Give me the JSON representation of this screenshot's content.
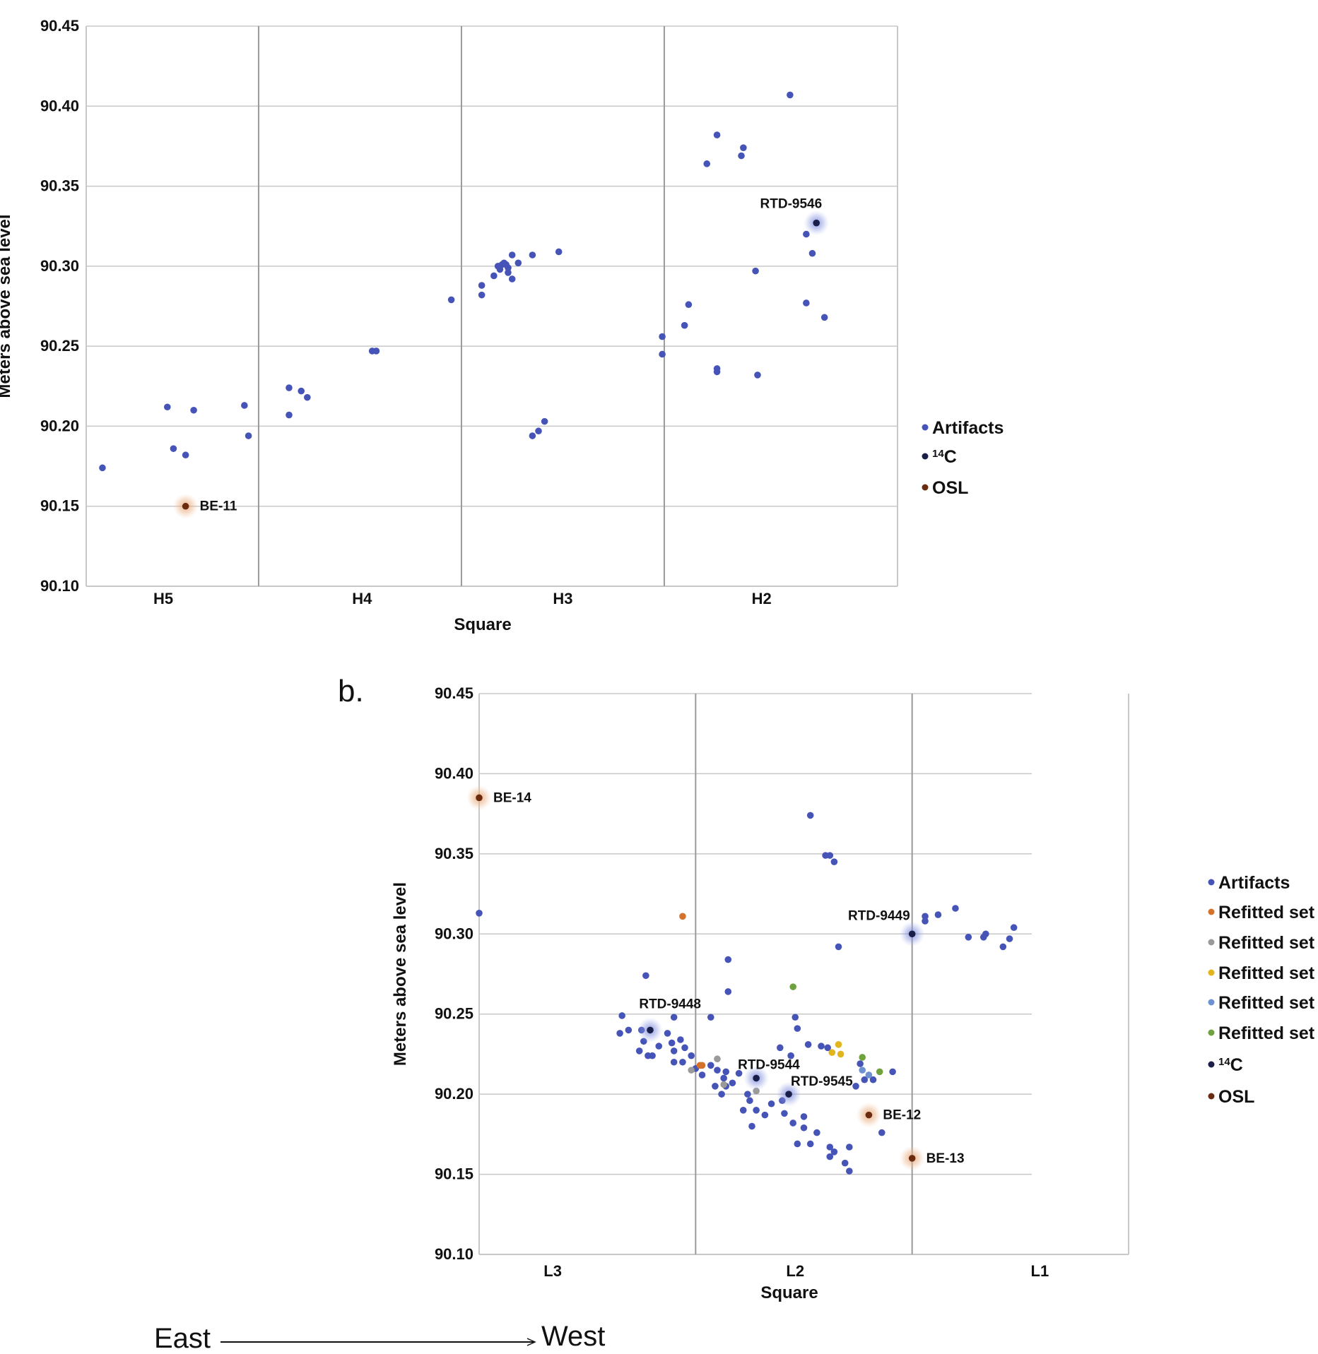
{
  "colors": {
    "artifacts": "#4654b8",
    "c14": "#1a1f4a",
    "osl": "#6b2b0f",
    "refit_orange": "#d4722c",
    "refit_gray": "#9a9a9a",
    "refit_yellow": "#e2b51c",
    "refit_lightblue": "#6e91d2",
    "refit_green": "#6fa23e",
    "grid": "#c8c8c8",
    "divider": "#9a9a9a"
  },
  "panel_b_label": "b.",
  "direction": {
    "east": "East",
    "west": "West"
  },
  "chart_data": [
    {
      "type": "scatter",
      "xlabel": "Square",
      "ylabel": "Meters above sea level",
      "xlim": [
        0,
        4
      ],
      "ylim": [
        90.1,
        90.45
      ],
      "yticks": [
        "90.45",
        "90.40",
        "90.35",
        "90.30",
        "90.25",
        "90.20",
        "90.15",
        "90.10"
      ],
      "categories": [
        {
          "label": "H5",
          "x": 0.38
        },
        {
          "label": "H4",
          "x": 1.36
        },
        {
          "label": "H3",
          "x": 2.35
        },
        {
          "label": "H2",
          "x": 3.33
        }
      ],
      "dividers": [
        0.85,
        1.85,
        2.85
      ],
      "grid": true,
      "legend_position": "right",
      "legend": [
        {
          "label": "Artifacts",
          "marker": "artifacts"
        },
        {
          "label": "14C",
          "marker": "c14"
        },
        {
          "label": "OSL",
          "marker": "osl"
        }
      ],
      "series": [
        {
          "name": "Artifacts",
          "color": "artifacts",
          "points": [
            [
              0.08,
              90.174
            ],
            [
              0.4,
              90.212
            ],
            [
              0.53,
              90.21
            ],
            [
              0.43,
              90.186
            ],
            [
              0.49,
              90.182
            ],
            [
              0.78,
              90.213
            ],
            [
              0.8,
              90.194
            ],
            [
              1.0,
              90.224
            ],
            [
              1.06,
              90.222
            ],
            [
              1.09,
              90.218
            ],
            [
              1.0,
              90.207
            ],
            [
              1.41,
              90.247
            ],
            [
              1.43,
              90.247
            ],
            [
              1.8,
              90.279
            ],
            [
              1.95,
              90.288
            ],
            [
              1.95,
              90.282
            ],
            [
              2.01,
              90.294
            ],
            [
              2.03,
              90.3
            ],
            [
              2.05,
              90.301
            ],
            [
              2.07,
              90.301
            ],
            [
              2.08,
              90.299
            ],
            [
              2.04,
              90.298
            ],
            [
              2.06,
              90.302
            ],
            [
              2.08,
              90.296
            ],
            [
              2.1,
              90.292
            ],
            [
              2.1,
              90.307
            ],
            [
              2.13,
              90.302
            ],
            [
              2.2,
              90.307
            ],
            [
              2.33,
              90.309
            ],
            [
              2.2,
              90.194
            ],
            [
              2.23,
              90.197
            ],
            [
              2.26,
              90.203
            ],
            [
              2.84,
              90.256
            ],
            [
              2.84,
              90.245
            ],
            [
              2.95,
              90.263
            ],
            [
              2.97,
              90.276
            ],
            [
              3.06,
              90.364
            ],
            [
              3.11,
              90.382
            ],
            [
              3.24,
              90.374
            ],
            [
              3.23,
              90.369
            ],
            [
              3.11,
              90.236
            ],
            [
              3.11,
              90.234
            ],
            [
              3.3,
              90.297
            ],
            [
              3.31,
              90.232
            ],
            [
              3.47,
              90.407
            ],
            [
              3.55,
              90.32
            ],
            [
              3.58,
              90.308
            ],
            [
              3.55,
              90.277
            ],
            [
              3.64,
              90.268
            ]
          ]
        },
        {
          "name": "14C",
          "color": "c14",
          "points": [
            [
              3.6,
              90.327,
              "RTD-9546"
            ]
          ]
        },
        {
          "name": "OSL",
          "color": "osl",
          "points": [
            [
              0.49,
              90.15,
              "BE-11"
            ]
          ]
        }
      ]
    },
    {
      "type": "scatter",
      "xlabel": "Square",
      "ylabel": "Meters above sea level",
      "xlim": [
        0,
        3
      ],
      "ylim": [
        90.1,
        90.45
      ],
      "yticks": [
        "90.45",
        "90.40",
        "90.35",
        "90.30",
        "90.25",
        "90.20",
        "90.15",
        "90.10"
      ],
      "categories": [
        {
          "label": "L3",
          "x": 0.34
        },
        {
          "label": "L2",
          "x": 1.46
        },
        {
          "label": "L1",
          "x": 2.59
        }
      ],
      "dividers": [
        1.0,
        2.0
      ],
      "grid": true,
      "legend_position": "right",
      "legend": [
        {
          "label": "Artifacts",
          "marker": "artifacts"
        },
        {
          "label": "Refitted set",
          "marker": "refit_orange"
        },
        {
          "label": "Refitted set",
          "marker": "refit_gray"
        },
        {
          "label": "Refitted set",
          "marker": "refit_yellow"
        },
        {
          "label": "Refitted set",
          "marker": "refit_lightblue"
        },
        {
          "label": "Refitted set",
          "marker": "refit_green"
        },
        {
          "label": "14C",
          "marker": "c14"
        },
        {
          "label": "OSL",
          "marker": "osl"
        }
      ],
      "series": [
        {
          "name": "Artifacts",
          "color": "artifacts",
          "points": [
            [
              0.0,
              90.313
            ],
            [
              0.66,
              90.249
            ],
            [
              0.65,
              90.238
            ],
            [
              0.69,
              90.24
            ],
            [
              0.75,
              90.24
            ],
            [
              0.76,
              90.233
            ],
            [
              0.74,
              90.227
            ],
            [
              0.78,
              90.224
            ],
            [
              0.8,
              90.224
            ],
            [
              0.83,
              90.23
            ],
            [
              0.87,
              90.238
            ],
            [
              0.9,
              90.248
            ],
            [
              0.89,
              90.232
            ],
            [
              0.9,
              90.227
            ],
            [
              0.93,
              90.234
            ],
            [
              0.95,
              90.229
            ],
            [
              0.98,
              90.224
            ],
            [
              0.9,
              90.22
            ],
            [
              0.94,
              90.22
            ],
            [
              1.0,
              90.216
            ],
            [
              1.03,
              90.212
            ],
            [
              1.07,
              90.218
            ],
            [
              1.1,
              90.215
            ],
            [
              1.14,
              90.214
            ],
            [
              1.13,
              90.21
            ],
            [
              1.09,
              90.205
            ],
            [
              1.14,
              90.205
            ],
            [
              1.17,
              90.207
            ],
            [
              1.2,
              90.213
            ],
            [
              1.24,
              90.2
            ],
            [
              1.25,
              90.196
            ],
            [
              1.22,
              90.19
            ],
            [
              1.28,
              90.19
            ],
            [
              1.32,
              90.187
            ],
            [
              1.35,
              90.194
            ],
            [
              1.4,
              90.196
            ],
            [
              1.41,
              90.188
            ],
            [
              1.45,
              90.182
            ],
            [
              1.5,
              90.186
            ],
            [
              1.5,
              90.179
            ],
            [
              1.56,
              90.176
            ],
            [
              1.47,
              90.169
            ],
            [
              1.53,
              90.169
            ],
            [
              1.62,
              90.167
            ],
            [
              1.62,
              90.161
            ],
            [
              1.64,
              90.164
            ],
            [
              1.69,
              90.157
            ],
            [
              1.71,
              90.152
            ],
            [
              1.71,
              90.167
            ],
            [
              1.86,
              90.176
            ],
            [
              1.12,
              90.2
            ],
            [
              1.26,
              90.18
            ],
            [
              1.39,
              90.229
            ],
            [
              1.44,
              90.224
            ],
            [
              1.47,
              90.241
            ],
            [
              1.46,
              90.248
            ],
            [
              1.52,
              90.231
            ],
            [
              1.58,
              90.23
            ],
            [
              1.61,
              90.229
            ],
            [
              0.77,
              90.274
            ],
            [
              1.15,
              90.284
            ],
            [
              1.15,
              90.264
            ],
            [
              1.07,
              90.248
            ],
            [
              1.53,
              90.374
            ],
            [
              1.6,
              90.349
            ],
            [
              1.62,
              90.349
            ],
            [
              1.64,
              90.345
            ],
            [
              1.66,
              90.292
            ],
            [
              1.76,
              90.219
            ],
            [
              1.78,
              90.209
            ],
            [
              1.82,
              90.209
            ],
            [
              1.91,
              90.214
            ],
            [
              1.74,
              90.205
            ],
            [
              2.06,
              90.311
            ],
            [
              2.06,
              90.308
            ],
            [
              2.12,
              90.312
            ],
            [
              2.2,
              90.316
            ],
            [
              2.26,
              90.298
            ],
            [
              2.33,
              90.298
            ],
            [
              2.34,
              90.3
            ],
            [
              2.42,
              90.292
            ],
            [
              2.45,
              90.297
            ],
            [
              2.47,
              90.304
            ]
          ]
        },
        {
          "name": "Refitted set",
          "color": "refit_orange",
          "points": [
            [
              0.94,
              90.311
            ],
            [
              1.02,
              90.218
            ],
            [
              1.03,
              90.218
            ]
          ]
        },
        {
          "name": "Refitted set",
          "color": "refit_gray",
          "points": [
            [
              0.98,
              90.215
            ],
            [
              1.1,
              90.222
            ],
            [
              1.13,
              90.206
            ],
            [
              1.28,
              90.202
            ]
          ]
        },
        {
          "name": "Refitted set",
          "color": "refit_yellow",
          "points": [
            [
              1.63,
              90.226
            ],
            [
              1.67,
              90.225
            ],
            [
              1.66,
              90.231
            ]
          ]
        },
        {
          "name": "Refitted set",
          "color": "refit_lightblue",
          "points": [
            [
              1.77,
              90.215
            ],
            [
              1.8,
              90.212
            ]
          ]
        },
        {
          "name": "Refitted set",
          "color": "refit_green",
          "points": [
            [
              1.45,
              90.267
            ],
            [
              1.77,
              90.223
            ],
            [
              1.85,
              90.214
            ]
          ]
        },
        {
          "name": "14C",
          "color": "c14",
          "points": [
            [
              0.79,
              90.24,
              "RTD-9448"
            ],
            [
              1.28,
              90.21,
              "RTD-9544"
            ],
            [
              1.43,
              90.2,
              "RTD-9545"
            ],
            [
              2.0,
              90.3,
              "RTD-9449"
            ]
          ]
        },
        {
          "name": "OSL",
          "color": "osl",
          "points": [
            [
              0.0,
              90.385,
              "BE-14"
            ],
            [
              1.8,
              90.187,
              "BE-12"
            ],
            [
              2.0,
              90.16,
              "BE-13"
            ]
          ]
        }
      ]
    }
  ]
}
